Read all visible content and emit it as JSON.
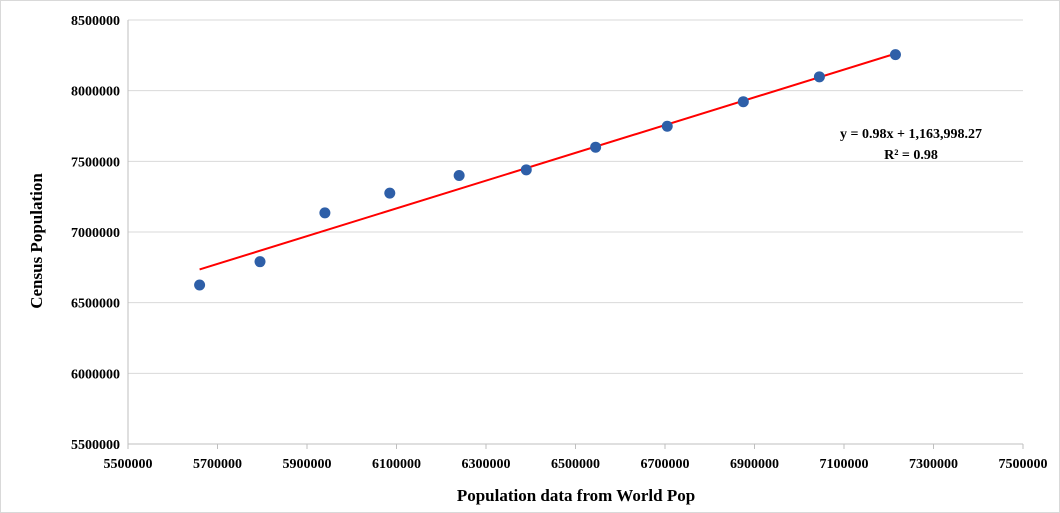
{
  "chart_data": {
    "type": "scatter",
    "xlabel": "Population data from World  Pop",
    "ylabel": "Census  Population",
    "xlim": [
      5500000,
      7500000
    ],
    "ylim": [
      5500000,
      8500000
    ],
    "x_ticks": [
      "5500000",
      "5700000",
      "5900000",
      "6100000",
      "6300000",
      "6500000",
      "6700000",
      "6900000",
      "7100000",
      "7300000",
      "7500000"
    ],
    "y_ticks": [
      "5500000",
      "6000000",
      "6500000",
      "7000000",
      "7500000",
      "8000000",
      "8500000"
    ],
    "grid": "horizontal",
    "series": [
      {
        "points": [
          [
            5660000,
            6625000
          ],
          [
            5795000,
            6790000
          ],
          [
            5940000,
            7135000
          ],
          [
            6085000,
            7275000
          ],
          [
            6240000,
            7400000
          ],
          [
            6390000,
            7440000
          ],
          [
            6545000,
            7600000
          ],
          [
            6705000,
            7748000
          ],
          [
            6875000,
            7922000
          ],
          [
            7045000,
            8098000
          ],
          [
            7215000,
            8255000
          ]
        ],
        "color": "#2e5fa8"
      }
    ],
    "trendline": {
      "type": "linear",
      "x_range": [
        5660000,
        7215000
      ],
      "y_range": [
        6735000,
        8262000
      ],
      "color": "#ff0000",
      "equation": "y = 0.98x + 1,163,998.27",
      "r_squared": "R² = 0.98"
    }
  }
}
